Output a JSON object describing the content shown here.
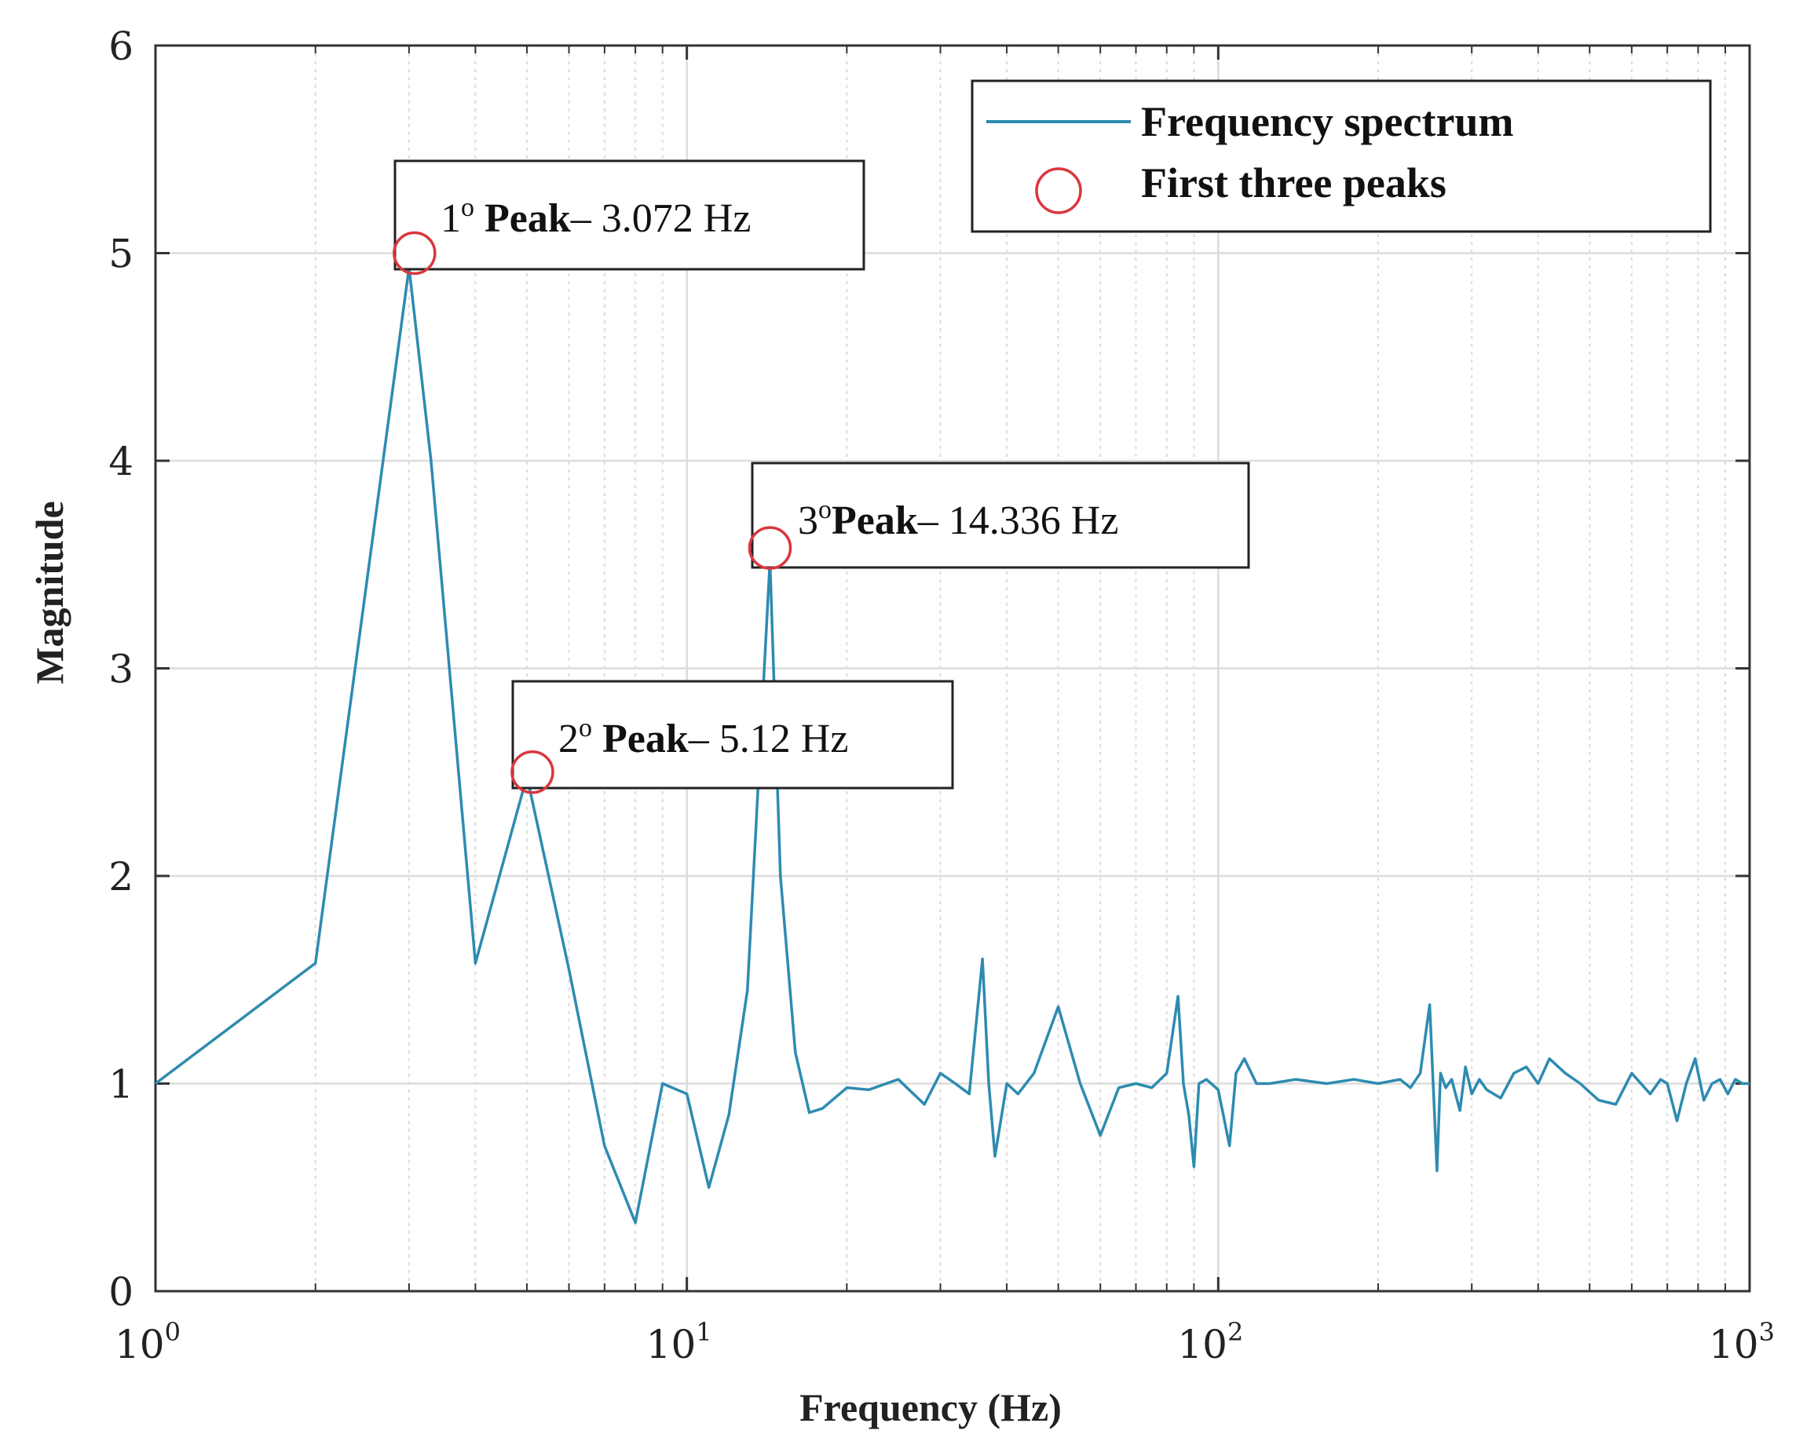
{
  "chart_data": {
    "type": "line",
    "title": "",
    "xlabel": "Frequency (Hz)",
    "ylabel": "Magnitude",
    "xscale": "log",
    "xlim": [
      1,
      1000
    ],
    "ylim": [
      0,
      6
    ],
    "grid": true,
    "legend_position": "top-right",
    "x_ticks": [
      {
        "value": 1,
        "base": "10",
        "exp": "0"
      },
      {
        "value": 10,
        "base": "10",
        "exp": "1"
      },
      {
        "value": 100,
        "base": "10",
        "exp": "2"
      },
      {
        "value": 1000,
        "base": "10",
        "exp": "3"
      }
    ],
    "y_ticks": [
      "0",
      "1",
      "2",
      "3",
      "4",
      "5",
      "6"
    ],
    "colors": {
      "line": "#2e8bb0",
      "marker": "#d9363e",
      "axis": "#333333",
      "grid": "#dcdcdc"
    },
    "series": [
      {
        "name": "Frequency spectrum",
        "x": [
          1,
          2,
          3,
          3.3,
          4,
          5,
          6,
          7,
          8,
          9,
          10,
          11,
          12,
          13,
          14.336,
          15,
          16,
          17,
          18,
          20,
          22,
          25,
          28,
          30,
          32,
          34,
          36,
          37,
          38,
          40,
          42,
          45,
          50,
          55,
          60,
          65,
          70,
          75,
          80,
          84,
          86,
          88,
          90,
          92,
          95,
          100,
          105,
          108,
          112,
          118,
          125,
          140,
          160,
          180,
          200,
          220,
          230,
          240,
          250,
          258,
          262,
          268,
          275,
          285,
          292,
          300,
          310,
          320,
          340,
          360,
          380,
          400,
          420,
          450,
          480,
          520,
          560,
          600,
          650,
          680,
          700,
          730,
          760,
          790,
          820,
          850,
          880,
          910,
          940,
          970,
          1000
        ],
        "values": [
          1.0,
          1.58,
          4.93,
          4.0,
          1.58,
          2.48,
          1.55,
          0.7,
          0.33,
          1.0,
          0.95,
          0.5,
          0.85,
          1.45,
          3.52,
          2.0,
          1.15,
          0.86,
          0.88,
          0.98,
          0.97,
          1.02,
          0.9,
          1.05,
          1.0,
          0.95,
          1.6,
          1.0,
          0.65,
          1.0,
          0.95,
          1.05,
          1.37,
          1.0,
          0.75,
          0.98,
          1.0,
          0.98,
          1.05,
          1.42,
          1.0,
          0.85,
          0.6,
          1.0,
          1.02,
          0.97,
          0.7,
          1.05,
          1.12,
          1.0,
          1.0,
          1.02,
          1.0,
          1.02,
          1.0,
          1.02,
          0.98,
          1.05,
          1.38,
          0.58,
          1.05,
          0.98,
          1.02,
          0.87,
          1.08,
          0.95,
          1.02,
          0.97,
          0.93,
          1.05,
          1.08,
          1.0,
          1.12,
          1.05,
          1.0,
          0.92,
          0.9,
          1.05,
          0.95,
          1.02,
          1.0,
          0.82,
          1.0,
          1.12,
          0.92,
          1.0,
          1.02,
          0.95,
          1.02,
          1.0,
          1.0
        ]
      },
      {
        "name": "First three peaks",
        "type": "scatter",
        "x": [
          3.072,
          5.12,
          14.336
        ],
        "values": [
          5.0,
          2.5,
          3.58
        ]
      }
    ],
    "annotations": [
      {
        "sup_num": "1",
        "sup": "o",
        "bold": " Peak",
        "rest": "– 3.072 Hz",
        "x": 3.072,
        "y": 5.0
      },
      {
        "sup_num": "2",
        "sup": "o",
        "bold": " Peak",
        "rest": "– 5.12 Hz",
        "x": 5.12,
        "y": 2.5
      },
      {
        "sup_num": "3",
        "sup": "o",
        "bold": "Peak",
        "rest": "– 14.336 Hz",
        "x": 14.336,
        "y": 3.58
      }
    ]
  }
}
